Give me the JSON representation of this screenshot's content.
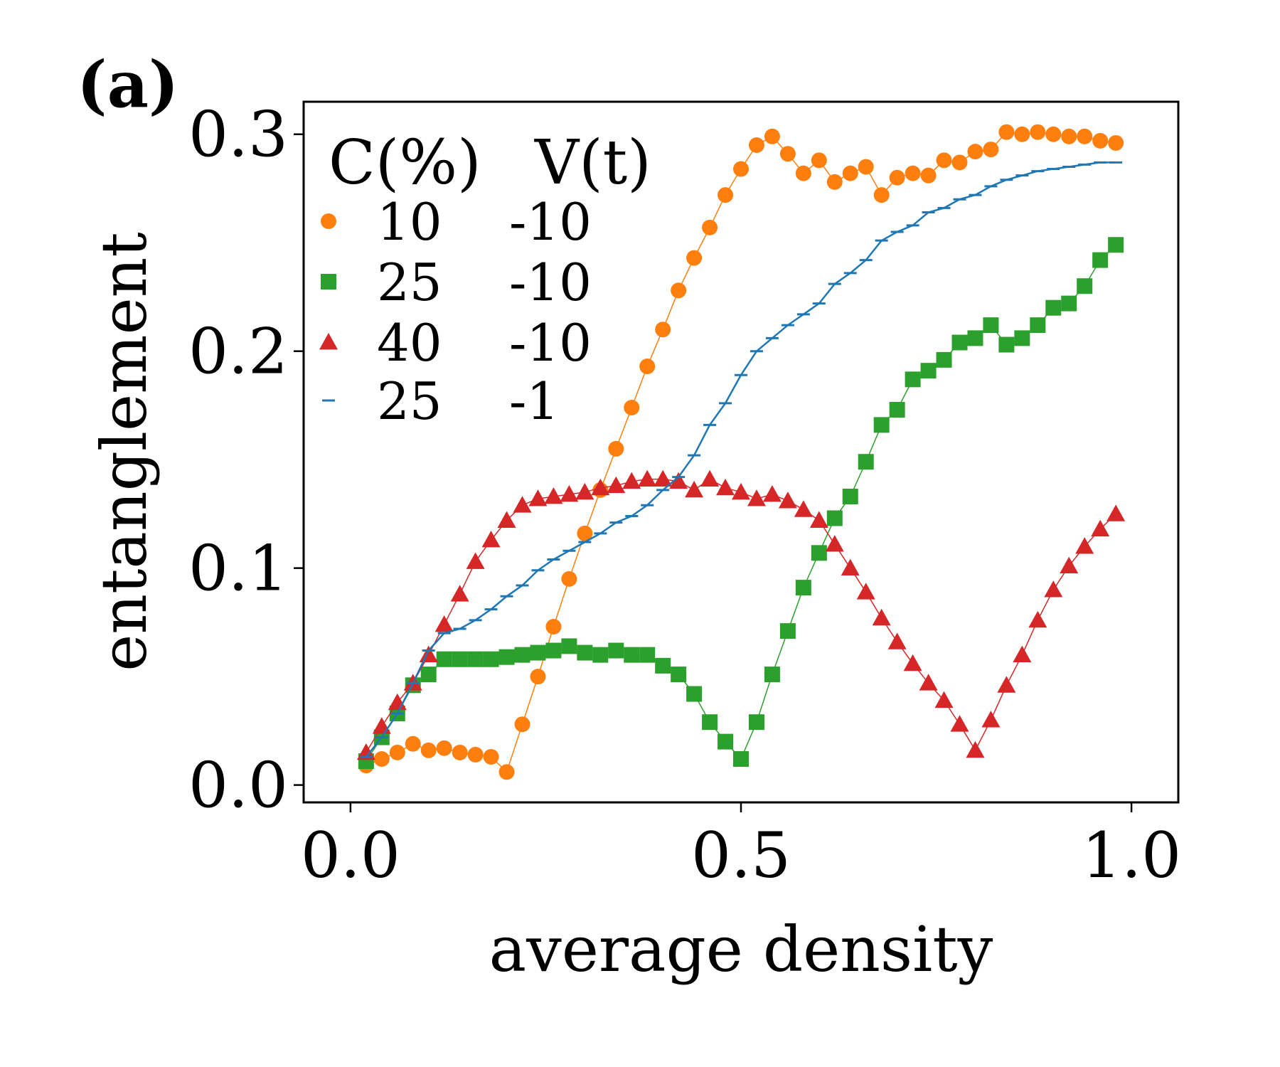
{
  "panel_label": "(a)",
  "chart_data": {
    "type": "scatter",
    "title": "",
    "xlabel": "average density",
    "ylabel": "entanglement",
    "xlim": [
      -0.06,
      1.06
    ],
    "ylim": [
      -0.008,
      0.315
    ],
    "xticks": [
      0.0,
      0.5,
      1.0
    ],
    "xtick_labels": [
      "0.0",
      "0.5",
      "1.0"
    ],
    "yticks": [
      0.0,
      0.1,
      0.2,
      0.3
    ],
    "ytick_labels": [
      "0.0",
      "0.1",
      "0.2",
      "0.3"
    ],
    "grid": false,
    "legend": {
      "location": "upper-left",
      "header_c": "C(%)",
      "header_v": "V(t)"
    },
    "series": [
      {
        "name": "10 -10",
        "c": "10",
        "v": "-10",
        "marker": "circle",
        "color": "#ff7f0e",
        "x": [
          0.02,
          0.04,
          0.06,
          0.08,
          0.1,
          0.12,
          0.14,
          0.16,
          0.18,
          0.2,
          0.22,
          0.24,
          0.26,
          0.28,
          0.3,
          0.32,
          0.34,
          0.36,
          0.38,
          0.4,
          0.42,
          0.44,
          0.46,
          0.48,
          0.5,
          0.52,
          0.54,
          0.56,
          0.58,
          0.6,
          0.62,
          0.64,
          0.66,
          0.68,
          0.7,
          0.72,
          0.74,
          0.76,
          0.78,
          0.8,
          0.82,
          0.84,
          0.86,
          0.88,
          0.9,
          0.92,
          0.94,
          0.96,
          0.98
        ],
        "y": [
          0.009,
          0.012,
          0.015,
          0.019,
          0.016,
          0.017,
          0.015,
          0.014,
          0.013,
          0.006,
          0.028,
          0.05,
          0.073,
          0.095,
          0.116,
          0.136,
          0.155,
          0.174,
          0.193,
          0.21,
          0.228,
          0.243,
          0.257,
          0.272,
          0.284,
          0.295,
          0.299,
          0.291,
          0.282,
          0.288,
          0.278,
          0.282,
          0.285,
          0.272,
          0.28,
          0.282,
          0.281,
          0.288,
          0.287,
          0.292,
          0.293,
          0.301,
          0.3,
          0.301,
          0.3,
          0.299,
          0.299,
          0.297,
          0.296
        ]
      },
      {
        "name": "25 -10",
        "c": "25",
        "v": "-10",
        "marker": "square",
        "color": "#2ca02c",
        "x": [
          0.02,
          0.04,
          0.06,
          0.08,
          0.1,
          0.12,
          0.14,
          0.16,
          0.18,
          0.2,
          0.22,
          0.24,
          0.26,
          0.28,
          0.3,
          0.32,
          0.34,
          0.36,
          0.38,
          0.4,
          0.42,
          0.44,
          0.46,
          0.48,
          0.5,
          0.52,
          0.54,
          0.56,
          0.58,
          0.6,
          0.62,
          0.64,
          0.66,
          0.68,
          0.7,
          0.72,
          0.74,
          0.76,
          0.78,
          0.8,
          0.82,
          0.84,
          0.86,
          0.88,
          0.9,
          0.92,
          0.94,
          0.96,
          0.98
        ],
        "y": [
          0.011,
          0.022,
          0.033,
          0.046,
          0.051,
          0.058,
          0.058,
          0.058,
          0.058,
          0.059,
          0.06,
          0.061,
          0.062,
          0.064,
          0.061,
          0.06,
          0.062,
          0.06,
          0.06,
          0.055,
          0.051,
          0.042,
          0.029,
          0.02,
          0.012,
          0.029,
          0.051,
          0.071,
          0.091,
          0.107,
          0.123,
          0.133,
          0.149,
          0.166,
          0.173,
          0.187,
          0.191,
          0.196,
          0.204,
          0.206,
          0.212,
          0.203,
          0.206,
          0.212,
          0.22,
          0.222,
          0.23,
          0.242,
          0.249
        ]
      },
      {
        "name": "40 -10",
        "c": "40",
        "v": "-10",
        "marker": "triangle",
        "color": "#d62728",
        "x": [
          0.02,
          0.04,
          0.06,
          0.08,
          0.1,
          0.12,
          0.14,
          0.16,
          0.18,
          0.2,
          0.22,
          0.24,
          0.26,
          0.28,
          0.3,
          0.32,
          0.34,
          0.36,
          0.38,
          0.4,
          0.42,
          0.44,
          0.46,
          0.48,
          0.5,
          0.52,
          0.54,
          0.56,
          0.58,
          0.6,
          0.62,
          0.64,
          0.66,
          0.68,
          0.7,
          0.72,
          0.74,
          0.76,
          0.78,
          0.8,
          0.82,
          0.84,
          0.86,
          0.88,
          0.9,
          0.92,
          0.94,
          0.96,
          0.98
        ],
        "y": [
          0.015,
          0.027,
          0.038,
          0.047,
          0.06,
          0.074,
          0.088,
          0.103,
          0.113,
          0.122,
          0.129,
          0.132,
          0.133,
          0.134,
          0.135,
          0.137,
          0.138,
          0.14,
          0.141,
          0.141,
          0.14,
          0.136,
          0.141,
          0.137,
          0.135,
          0.132,
          0.134,
          0.131,
          0.127,
          0.122,
          0.111,
          0.1,
          0.089,
          0.077,
          0.066,
          0.056,
          0.047,
          0.039,
          0.028,
          0.016,
          0.03,
          0.046,
          0.06,
          0.076,
          0.09,
          0.101,
          0.11,
          0.118,
          0.125
        ]
      },
      {
        "name": "25 -1",
        "c": "25",
        "v": "-1",
        "marker": "hline",
        "color": "#1f77b4",
        "x": [
          0.02,
          0.04,
          0.06,
          0.08,
          0.1,
          0.12,
          0.14,
          0.16,
          0.18,
          0.2,
          0.22,
          0.24,
          0.26,
          0.28,
          0.3,
          0.32,
          0.34,
          0.36,
          0.38,
          0.4,
          0.42,
          0.44,
          0.46,
          0.48,
          0.5,
          0.52,
          0.54,
          0.56,
          0.58,
          0.6,
          0.62,
          0.64,
          0.66,
          0.68,
          0.7,
          0.72,
          0.74,
          0.76,
          0.78,
          0.8,
          0.82,
          0.84,
          0.86,
          0.88,
          0.9,
          0.92,
          0.94,
          0.96,
          0.98
        ],
        "y": [
          0.013,
          0.022,
          0.033,
          0.047,
          0.062,
          0.07,
          0.072,
          0.076,
          0.081,
          0.087,
          0.092,
          0.099,
          0.104,
          0.108,
          0.112,
          0.116,
          0.121,
          0.124,
          0.129,
          0.136,
          0.142,
          0.152,
          0.166,
          0.176,
          0.189,
          0.2,
          0.206,
          0.212,
          0.217,
          0.222,
          0.231,
          0.236,
          0.242,
          0.251,
          0.255,
          0.258,
          0.264,
          0.266,
          0.27,
          0.272,
          0.276,
          0.279,
          0.281,
          0.283,
          0.284,
          0.285,
          0.286,
          0.287,
          0.287
        ]
      }
    ]
  }
}
